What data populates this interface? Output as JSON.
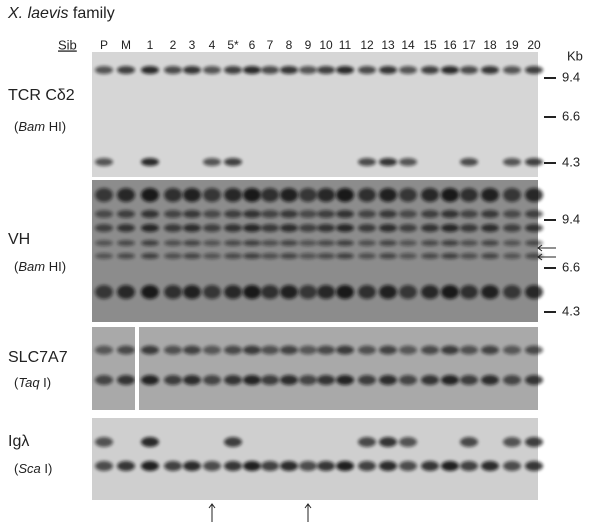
{
  "title_parts": [
    "X. laevis",
    " family"
  ],
  "sib": "Sib",
  "lanes": [
    "P",
    "M",
    "1",
    "2",
    "3",
    "4",
    "5*",
    "6",
    "7",
    "8",
    "9",
    "10",
    "11",
    "12",
    "13",
    "14",
    "15",
    "16",
    "17",
    "18",
    "19",
    "20"
  ],
  "unit": "Kb",
  "panels": [
    {
      "probe": "TCR Cδ2",
      "enzyme_parts": [
        "(",
        "Bam",
        " HI)"
      ],
      "markers": [
        9.4,
        6.6,
        4.3
      ]
    },
    {
      "probe": "VH",
      "enzyme_parts": [
        "(",
        "Bam",
        " HI)"
      ],
      "markers": [
        9.4,
        6.6,
        4.3
      ]
    },
    {
      "probe": "SLC7A7",
      "enzyme_parts": [
        "(",
        "Taq",
        " I)"
      ]
    },
    {
      "probe": "Igλ",
      "enzyme_parts": [
        "(",
        "Sca",
        " I)"
      ]
    }
  ]
}
